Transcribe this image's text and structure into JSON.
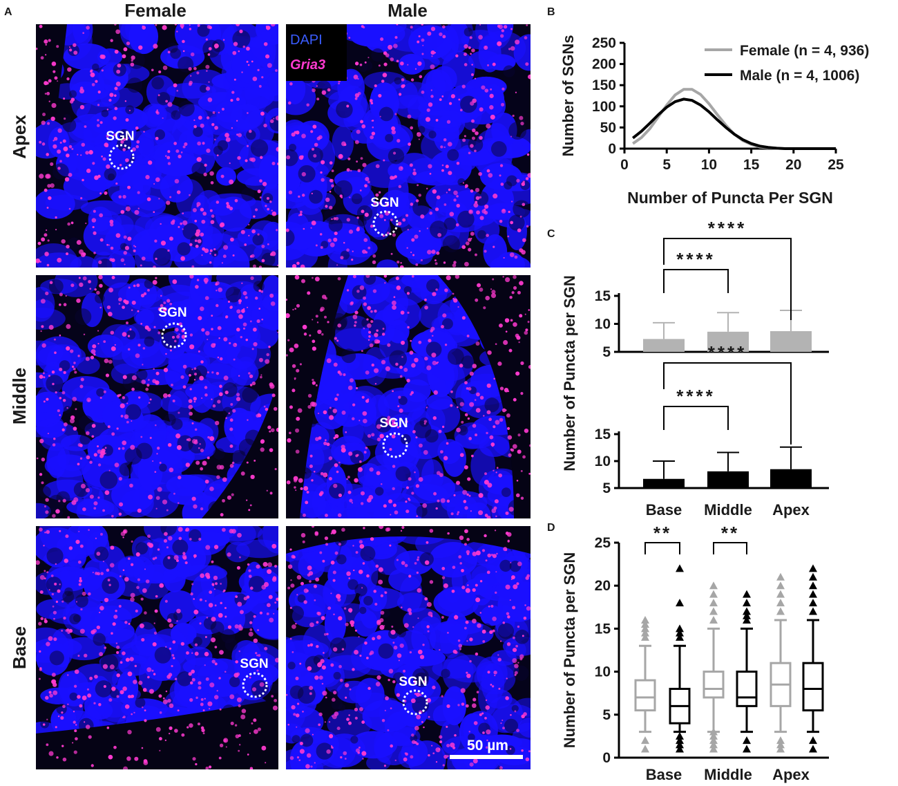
{
  "panel_letters": {
    "a": "A",
    "b": "B",
    "c": "C",
    "d": "D"
  },
  "panel_a": {
    "col_female": "Female",
    "col_male": "Male",
    "row_apex": "Apex",
    "row_middle": "Middle",
    "row_base": "Base",
    "legend_dapi": "DAPI",
    "legend_gria3": "Gria3",
    "sgn_label": "SGN",
    "scale_bar": "50 µm",
    "colors": {
      "dapi": "#1a10ff",
      "gria3": "#ff3ad0",
      "background": "#05031a"
    }
  },
  "chart_data": [
    {
      "type": "line",
      "panel": "B",
      "xlabel": "Number of Puncta Per SGN",
      "ylabel": "Number of SGNs",
      "xlim": [
        0,
        25
      ],
      "ylim": [
        0,
        250
      ],
      "xticks": [
        "0",
        "5",
        "10",
        "15",
        "20",
        "25"
      ],
      "yticks": [
        "0",
        "50",
        "100",
        "150",
        "200",
        "250"
      ],
      "legend_position": "top-right",
      "series": [
        {
          "name": "Female (n = 4, 936)",
          "color": "#a6a6a6",
          "x": [
            1,
            2,
            3,
            4,
            5,
            6,
            7,
            8,
            9,
            10,
            11,
            12,
            13,
            14,
            15,
            16,
            17,
            18,
            19,
            20,
            21,
            22,
            23,
            24,
            25
          ],
          "y": [
            12,
            26,
            47,
            75,
            103,
            127,
            140,
            140,
            128,
            106,
            80,
            55,
            34,
            19,
            10,
            4,
            2,
            1,
            0,
            0,
            0,
            0,
            0,
            0,
            0
          ]
        },
        {
          "name": "Male (n = 4, 1006)",
          "color": "#000000",
          "x": [
            1,
            2,
            3,
            4,
            5,
            6,
            7,
            8,
            9,
            10,
            11,
            12,
            13,
            14,
            15,
            16,
            17,
            18,
            19,
            20,
            21,
            22,
            23,
            24,
            25
          ],
          "y": [
            25,
            41,
            60,
            80,
            98,
            111,
            117,
            114,
            103,
            87,
            68,
            50,
            34,
            21,
            12,
            6,
            3,
            1,
            0,
            0,
            0,
            0,
            0,
            0,
            0
          ]
        }
      ]
    },
    {
      "type": "bar",
      "panel": "C",
      "ylabel": "Number of Puncta per SGN",
      "categories": [
        "Base",
        "Middle",
        "Apex"
      ],
      "ylim": [
        5,
        15
      ],
      "yticks": [
        "5",
        "10",
        "15"
      ],
      "series": [
        {
          "name": "",
          "color": "#b3b3b3",
          "values": [
            7.3,
            8.6,
            8.7
          ],
          "sd": [
            2.9,
            3.4,
            3.7
          ],
          "significance": [
            {
              "from": "Base",
              "to": "Middle",
              "label": "****"
            },
            {
              "from": "Base",
              "to": "Apex",
              "label": "****"
            }
          ]
        },
        {
          "name": "",
          "color": "#000000",
          "values": [
            6.7,
            8.1,
            8.5
          ],
          "sd": [
            3.3,
            3.5,
            4.1
          ],
          "significance": [
            {
              "from": "Base",
              "to": "Middle",
              "label": "****"
            },
            {
              "from": "Base",
              "to": "Apex",
              "label": "****"
            }
          ]
        }
      ]
    },
    {
      "type": "box",
      "panel": "D",
      "ylabel": "Number of Puncta per SGN",
      "categories": [
        "Base",
        "Middle",
        "Apex"
      ],
      "ylim": [
        0,
        25
      ],
      "yticks": [
        "0",
        "5",
        "10",
        "15",
        "20",
        "25"
      ],
      "significance": [
        {
          "category": "Base",
          "label": "**"
        },
        {
          "category": "Middle",
          "label": "**"
        }
      ],
      "boxes": [
        {
          "category": "Base",
          "color": "#a6a6a6",
          "whisker_low": 3,
          "q1": 5.5,
          "median": 7,
          "q3": 9,
          "whisker_high": 13,
          "outliers": [
            1,
            2,
            14,
            14.5,
            15,
            15.5,
            16
          ]
        },
        {
          "category": "Base",
          "color": "#000000",
          "whisker_low": 3,
          "q1": 4,
          "median": 6,
          "q3": 8,
          "whisker_high": 13,
          "outliers": [
            1,
            1.5,
            2,
            2.5,
            14,
            14.5,
            15,
            18,
            22
          ]
        },
        {
          "category": "Middle",
          "color": "#a6a6a6",
          "whisker_low": 3,
          "q1": 7,
          "median": 8,
          "q3": 10,
          "whisker_high": 15,
          "outliers": [
            1,
            1.5,
            2,
            2.5,
            3,
            16,
            17,
            18,
            19,
            20
          ]
        },
        {
          "category": "Middle",
          "color": "#000000",
          "whisker_low": 3,
          "q1": 6,
          "median": 7,
          "q3": 10,
          "whisker_high": 15,
          "outliers": [
            1,
            2,
            16,
            16.5,
            17,
            18,
            19
          ]
        },
        {
          "category": "Apex",
          "color": "#a6a6a6",
          "whisker_low": 3,
          "q1": 6,
          "median": 8.5,
          "q3": 11,
          "whisker_high": 16,
          "outliers": [
            1,
            1.5,
            2,
            17,
            18,
            19,
            20,
            21
          ]
        },
        {
          "category": "Apex",
          "color": "#000000",
          "whisker_low": 3,
          "q1": 5.5,
          "median": 8,
          "q3": 11,
          "whisker_high": 16,
          "outliers": [
            1,
            2,
            17,
            18,
            19,
            20,
            21,
            22
          ]
        }
      ]
    }
  ]
}
